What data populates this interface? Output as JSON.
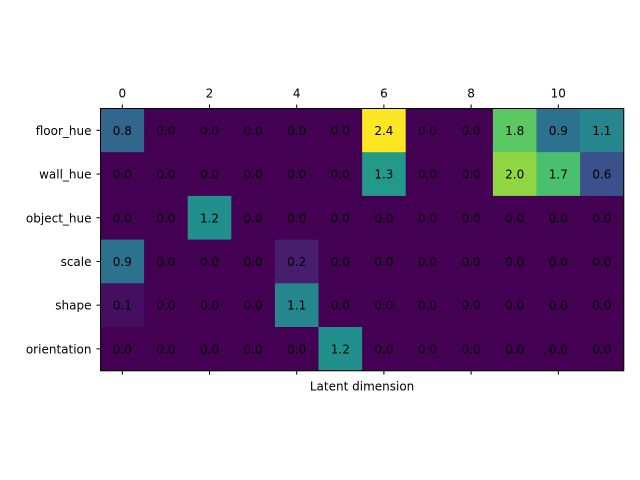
{
  "chart_data": {
    "type": "heatmap",
    "xlabel": "Latent dimension",
    "rows": [
      "floor_hue",
      "wall_hue",
      "object_hue",
      "scale",
      "shape",
      "orientation"
    ],
    "columns": [
      0,
      1,
      2,
      3,
      4,
      5,
      6,
      7,
      8,
      9,
      10,
      11
    ],
    "x_ticks": [
      "0",
      "2",
      "4",
      "6",
      "8",
      "10"
    ],
    "values": [
      [
        0.8,
        0.0,
        0.0,
        0.0,
        0.0,
        0.0,
        2.4,
        0.0,
        0.0,
        1.8,
        0.9,
        1.1
      ],
      [
        0.0,
        0.0,
        0.0,
        0.0,
        0.0,
        0.0,
        1.3,
        0.0,
        0.0,
        2.0,
        1.7,
        0.6
      ],
      [
        0.0,
        0.0,
        1.2,
        0.0,
        0.0,
        0.0,
        0.0,
        0.0,
        0.0,
        0.0,
        0.0,
        0.0
      ],
      [
        0.9,
        0.0,
        0.0,
        0.0,
        0.2,
        0.0,
        0.0,
        0.0,
        0.0,
        0.0,
        0.0,
        0.0
      ],
      [
        0.1,
        0.0,
        0.0,
        0.0,
        1.1,
        0.0,
        0.0,
        0.0,
        0.0,
        0.0,
        0.0,
        0.0
      ],
      [
        0.0,
        0.0,
        0.0,
        0.0,
        0.0,
        1.2,
        0.0,
        0.0,
        0.0,
        0.0,
        0.0,
        0.0
      ]
    ],
    "colormap": "viridis",
    "value_range": [
      0.0,
      2.4
    ],
    "x_tick_position": "top",
    "grid": false
  }
}
